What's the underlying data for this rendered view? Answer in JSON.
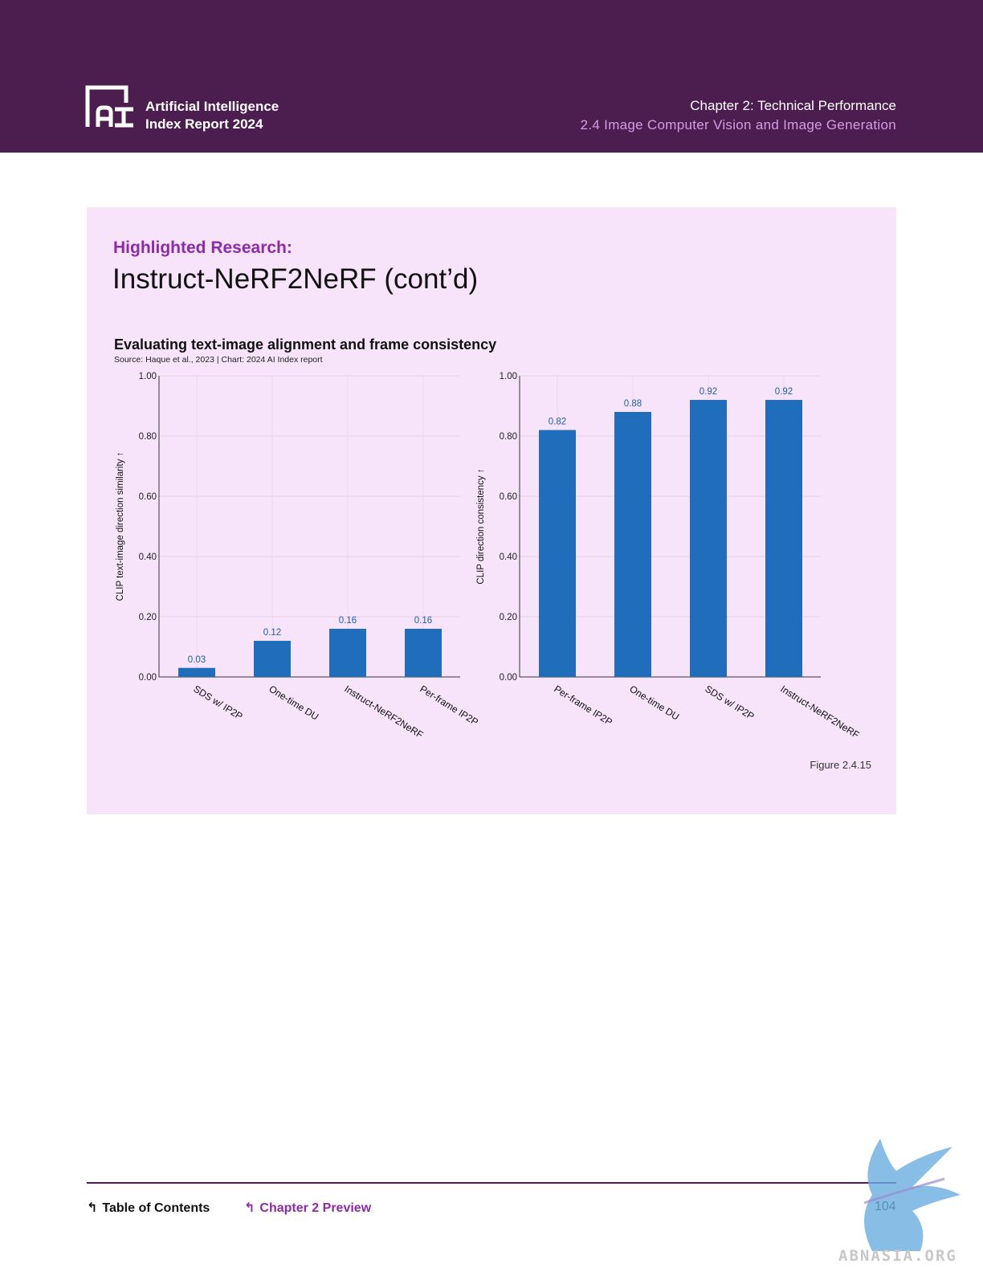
{
  "header": {
    "brand_line1": "Artificial Intelligence",
    "brand_line2": "Index Report 2024",
    "chapter": "Chapter 2: Technical Performance",
    "section": "2.4 Image Computer Vision and Image Generation"
  },
  "panel": {
    "eyebrow": "Highlighted Research:",
    "title": "Instruct-NeRF2NeRF (cont’d)",
    "chart_title": "Evaluating text-image alignment and frame consistency",
    "chart_source": "Source: Haque et al., 2023 | Chart: 2024 AI Index report",
    "figure_label": "Figure 2.4.15"
  },
  "chart_data": [
    {
      "type": "bar",
      "ylabel": "CLIP text-image direction similarity ↑",
      "ylim": [
        0,
        1
      ],
      "yticks": [
        "0.00",
        "0.20",
        "0.40",
        "0.60",
        "0.80",
        "1.00"
      ],
      "categories": [
        "SDS w/ IP2P",
        "One-time DU",
        "Instruct-NeRF2NeRF",
        "Per-frame IP2P"
      ],
      "values": [
        0.03,
        0.12,
        0.16,
        0.16
      ],
      "labels": [
        "0.03",
        "0.12",
        "0.16",
        "0.16"
      ],
      "grid": true
    },
    {
      "type": "bar",
      "ylabel": "CLIP direction consistency ↑",
      "ylim": [
        0,
        1
      ],
      "yticks": [
        "0.00",
        "0.20",
        "0.40",
        "0.60",
        "0.80",
        "1.00"
      ],
      "categories": [
        "Per-frame IP2P",
        "One-time DU",
        "SDS w/ IP2P",
        "Instruct-NeRF2NeRF"
      ],
      "values": [
        0.82,
        0.88,
        0.92,
        0.92
      ],
      "labels": [
        "0.82",
        "0.88",
        "0.92",
        "0.92"
      ],
      "grid": true
    }
  ],
  "colors": {
    "header_bg": "#4c1d4f",
    "panel_bg": "#f7e4fb",
    "accent": "#8c2aa8",
    "bar": "#1f6dbb"
  },
  "footer": {
    "toc": "Table of Contents",
    "chapter_preview": "Chapter 2 Preview",
    "page": "104"
  },
  "watermark": "ABNASIA.ORG"
}
